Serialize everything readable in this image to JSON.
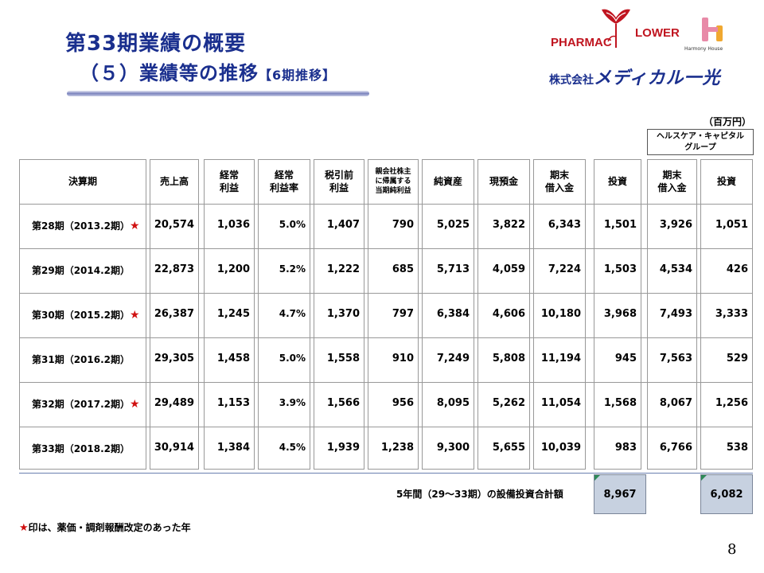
{
  "title_line1": "第33期業績の概要",
  "title_line2": "（５）業績等の推移",
  "title_sub": "【6期推移】",
  "logo": {
    "pharmac": "PHARMAC",
    "flower": "LOWER",
    "harmony": "Harmony House",
    "company_kabu": "株式会社",
    "company_name": "メディカル一光",
    "brand_color": "#c01520"
  },
  "unit": "（百万円）",
  "group_header": [
    "ヘルスケア・キャピタル",
    "グループ"
  ],
  "headers": {
    "period": "決算期",
    "sales": "売上高",
    "ordinary": [
      "経常",
      "利益"
    ],
    "ordinary_rate": [
      "経常",
      "利益率"
    ],
    "pretax": [
      "税引前",
      "利益"
    ],
    "net": [
      "親会社株主",
      "に帰属する",
      "当期純利益"
    ],
    "net_assets": "純資産",
    "cash": "現預金",
    "borrow": [
      "期末",
      "借入金"
    ],
    "invest": "投資",
    "hc_borrow": [
      "期末",
      "借入金"
    ],
    "hc_invest": "投資"
  },
  "rows": [
    {
      "period": "第28期（2013.2期）",
      "star": "★",
      "sales": "20,574",
      "ordinary": "1,036",
      "rate": "5.0%",
      "pretax": "1,407",
      "net": "790",
      "net_assets": "5,025",
      "cash": "3,822",
      "borrow": "6,343",
      "invest": "1,501",
      "hc_borrow": "3,926",
      "hc_invest": "1,051"
    },
    {
      "period": "第29期（2014.2期）",
      "star": "",
      "sales": "22,873",
      "ordinary": "1,200",
      "rate": "5.2%",
      "pretax": "1,222",
      "net": "685",
      "net_assets": "5,713",
      "cash": "4,059",
      "borrow": "7,224",
      "invest": "1,503",
      "hc_borrow": "4,534",
      "hc_invest": "426"
    },
    {
      "period": "第30期（2015.2期）",
      "star": "★",
      "sales": "26,387",
      "ordinary": "1,245",
      "rate": "4.7%",
      "pretax": "1,370",
      "net": "797",
      "net_assets": "6,384",
      "cash": "4,606",
      "borrow": "10,180",
      "invest": "3,968",
      "hc_borrow": "7,493",
      "hc_invest": "3,333"
    },
    {
      "period": "第31期（2016.2期）",
      "star": "",
      "sales": "29,305",
      "ordinary": "1,458",
      "rate": "5.0%",
      "pretax": "1,558",
      "net": "910",
      "net_assets": "7,249",
      "cash": "5,808",
      "borrow": "11,194",
      "invest": "945",
      "hc_borrow": "7,563",
      "hc_invest": "529"
    },
    {
      "period": "第32期（2017.2期）",
      "star": "★",
      "sales": "29,489",
      "ordinary": "1,153",
      "rate": "3.9%",
      "pretax": "1,566",
      "net": "956",
      "net_assets": "8,095",
      "cash": "5,262",
      "borrow": "11,054",
      "invest": "1,568",
      "hc_borrow": "8,067",
      "hc_invest": "1,256"
    },
    {
      "period": "第33期（2018.2期）",
      "star": "",
      "sales": "30,914",
      "ordinary": "1,384",
      "rate": "4.5%",
      "pretax": "1,939",
      "net": "1,238",
      "net_assets": "9,300",
      "cash": "5,655",
      "borrow": "10,039",
      "invest": "983",
      "hc_borrow": "6,766",
      "hc_invest": "538"
    }
  ],
  "total_label": "5年間（29～33期）の設備投資合計額",
  "total_invest": "8,967",
  "total_hc_invest": "6,082",
  "note_star": "★",
  "note_text": "印は、薬価・調剤報酬改定のあった年",
  "page_number": "8",
  "colors": {
    "title": "#1a2f8e",
    "star": "#d01010",
    "total_box": "#c7d1e0"
  }
}
